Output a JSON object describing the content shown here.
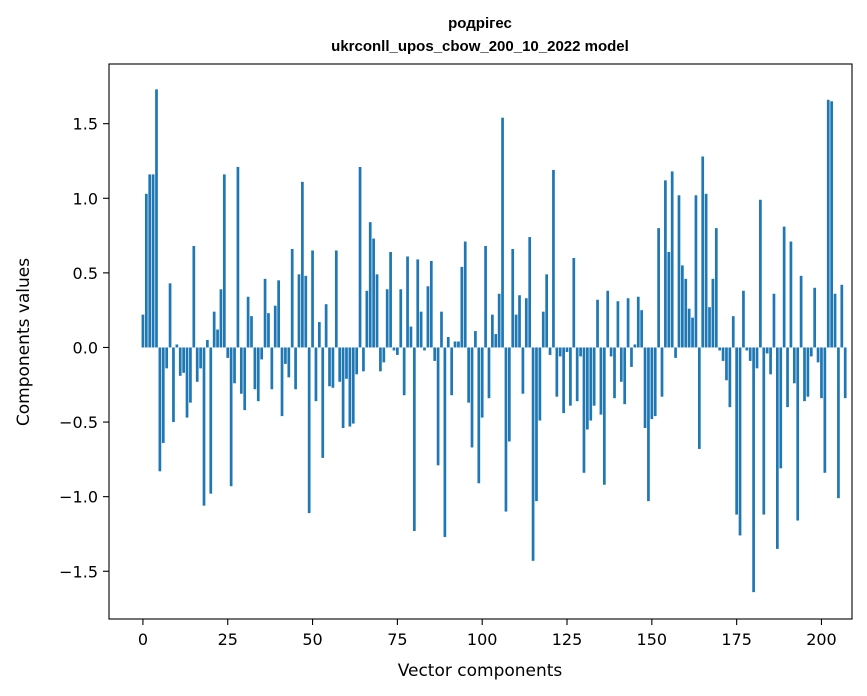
{
  "chart_data": {
    "type": "bar",
    "title_line1": "родрігес",
    "title_line2": "ukrconll_upos_cbow_200_10_2022 model",
    "xlabel": "Vector components",
    "ylabel": "Components values",
    "xlim": [
      -10,
      209
    ],
    "ylim": [
      -1.82,
      1.9
    ],
    "xticks": [
      0,
      25,
      50,
      75,
      100,
      125,
      150,
      175,
      200
    ],
    "yticks": [
      -1.5,
      -1.0,
      -0.5,
      0.0,
      0.5,
      1.0,
      1.5
    ],
    "ytick_labels": [
      "−1.5",
      "−1.0",
      "−0.5",
      "0.0",
      "0.5",
      "1.0",
      "1.5"
    ],
    "bar_color": "#1f77b4",
    "values": [
      0.22,
      1.03,
      1.16,
      1.16,
      1.73,
      -0.83,
      -0.64,
      -0.14,
      0.43,
      -0.5,
      0.02,
      -0.19,
      -0.17,
      -0.47,
      -0.37,
      0.68,
      -0.23,
      -0.14,
      -1.06,
      0.05,
      -0.98,
      0.24,
      0.12,
      0.39,
      1.16,
      -0.07,
      -0.93,
      -0.24,
      1.21,
      -0.31,
      -0.42,
      0.34,
      0.21,
      -0.28,
      -0.36,
      -0.08,
      0.46,
      0.23,
      -0.28,
      0.28,
      0.45,
      -0.46,
      -0.11,
      -0.2,
      0.66,
      -0.28,
      0.49,
      1.11,
      0.48,
      -1.11,
      0.65,
      -0.36,
      0.17,
      -0.74,
      0.29,
      -0.26,
      -0.27,
      0.65,
      -0.23,
      -0.54,
      -0.21,
      -0.53,
      -0.51,
      -0.18,
      1.21,
      -0.16,
      0.38,
      0.84,
      0.73,
      0.49,
      -0.16,
      -0.1,
      0.39,
      0.64,
      -0.02,
      -0.05,
      0.39,
      -0.32,
      0.61,
      0.14,
      -1.23,
      0.59,
      0.24,
      -0.02,
      0.41,
      0.58,
      -0.09,
      -0.79,
      0.24,
      -1.27,
      0.07,
      -0.32,
      0.04,
      0.04,
      0.54,
      0.71,
      -0.37,
      -0.67,
      0.11,
      -0.91,
      -0.47,
      0.68,
      -0.34,
      0.22,
      0.09,
      0.36,
      1.54,
      -1.1,
      -0.63,
      0.66,
      0.22,
      0.35,
      -0.31,
      0.33,
      0.74,
      -1.43,
      -1.03,
      -0.49,
      0.24,
      0.49,
      -0.05,
      1.19,
      -0.33,
      -0.06,
      -0.44,
      -0.03,
      -0.39,
      0.6,
      -0.36,
      -0.06,
      -0.84,
      -0.55,
      -0.49,
      -0.39,
      0.32,
      -0.45,
      -0.92,
      0.38,
      -0.06,
      -0.34,
      0.31,
      -0.23,
      -0.38,
      0.33,
      -0.13,
      0.02,
      0.34,
      0.25,
      -0.54,
      -1.03,
      -0.48,
      -0.46,
      0.8,
      -0.33,
      1.12,
      0.64,
      1.18,
      -0.07,
      1.02,
      0.55,
      0.46,
      0.26,
      0.2,
      1.02,
      -0.68,
      1.28,
      1.03,
      0.27,
      0.46,
      0.8,
      -0.02,
      -0.09,
      -0.22,
      -0.4,
      0.21,
      -1.12,
      -1.26,
      0.38,
      -0.02,
      -0.09,
      -1.64,
      -0.14,
      0.99,
      -1.12,
      -0.04,
      -0.18,
      0.36,
      -1.35,
      -0.81,
      0.81,
      -0.4,
      0.71,
      -0.24,
      -1.16,
      0.48,
      -0.36,
      -0.33,
      -0.06,
      0.4,
      -0.1,
      -0.34,
      -0.84,
      1.66,
      1.65,
      0.36,
      -1.01,
      0.42,
      -0.34
    ]
  }
}
